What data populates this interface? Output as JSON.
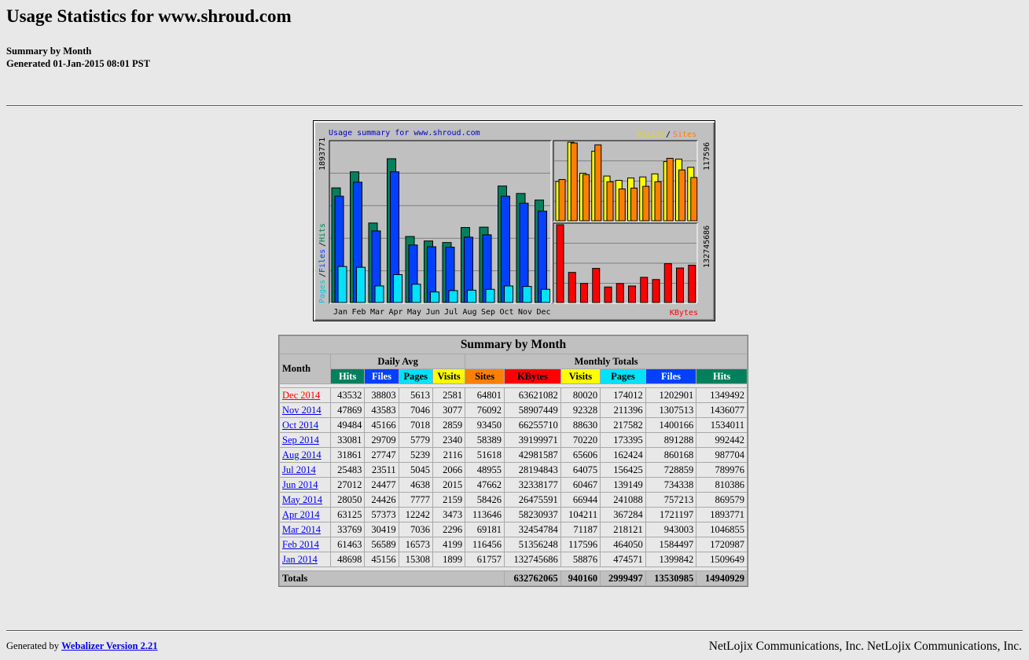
{
  "page": {
    "title": "Usage Statistics for www.shroud.com",
    "subtitle1": "Summary by Month",
    "subtitle2": "Generated 01-Jan-2015 08:01 PST"
  },
  "graph": {
    "title": "Usage summary for www.shroud.com",
    "legend_visits": "Visits",
    "legend_sites": "Sites",
    "legend_sep": "/",
    "left_axis_max": "1893771",
    "left_legend_pages": "Pages",
    "left_legend_files": "Files",
    "left_legend_hits": "Hits",
    "right_top_max": "117596",
    "right_bottom_max": "132745686",
    "kbytes_label": "KBytes",
    "colors": {
      "hits": "#00805c",
      "files": "#0040ff",
      "pages": "#00e0ff",
      "visits": "#ffff00",
      "sites": "#ff8000",
      "kbytes": "#ff0000"
    }
  },
  "chart_data": {
    "type": "bar",
    "categories": [
      "Jan",
      "Feb",
      "Mar",
      "Apr",
      "May",
      "Jun",
      "Jul",
      "Aug",
      "Sep",
      "Oct",
      "Nov",
      "Dec"
    ],
    "series": [
      {
        "name": "Hits",
        "values": [
          1509649,
          1720987,
          1046855,
          1893771,
          869579,
          810386,
          789976,
          987704,
          992442,
          1534011,
          1436077,
          1349492
        ]
      },
      {
        "name": "Files",
        "values": [
          1399842,
          1584497,
          943003,
          1721197,
          757213,
          734338,
          728859,
          860168,
          891288,
          1400166,
          1307513,
          1202901
        ]
      },
      {
        "name": "Pages",
        "values": [
          474571,
          464050,
          218121,
          367284,
          241088,
          139149,
          156425,
          162424,
          173395,
          217582,
          211396,
          174012
        ]
      },
      {
        "name": "Visits",
        "values": [
          58876,
          117596,
          71187,
          104211,
          66944,
          60467,
          64075,
          65606,
          70220,
          88630,
          92328,
          80020
        ]
      },
      {
        "name": "Sites",
        "values": [
          61757,
          116456,
          69181,
          113646,
          58426,
          47662,
          48955,
          51618,
          58389,
          93450,
          76092,
          64801
        ]
      },
      {
        "name": "KBytes",
        "values": [
          132745686,
          51356248,
          32454784,
          58230937,
          26475591,
          32338177,
          28194843,
          42981587,
          39199971,
          66255710,
          58907449,
          63621082
        ]
      }
    ]
  },
  "table": {
    "title": "Summary by Month",
    "col_month": "Month",
    "group_daily": "Daily Avg",
    "group_monthly": "Monthly Totals",
    "headers": {
      "d_hits": "Hits",
      "d_files": "Files",
      "d_pages": "Pages",
      "d_visits": "Visits",
      "m_sites": "Sites",
      "m_kbytes": "KBytes",
      "m_visits": "Visits",
      "m_pages": "Pages",
      "m_files": "Files",
      "m_hits": "Hits"
    },
    "rows": [
      {
        "month": "Dec 2014",
        "d": [
          "43532",
          "38803",
          "5613",
          "2581"
        ],
        "m": [
          "64801",
          "63621082",
          "80020",
          "174012",
          "1202901",
          "1349492"
        ]
      },
      {
        "month": "Nov 2014",
        "d": [
          "47869",
          "43583",
          "7046",
          "3077"
        ],
        "m": [
          "76092",
          "58907449",
          "92328",
          "211396",
          "1307513",
          "1436077"
        ]
      },
      {
        "month": "Oct 2014",
        "d": [
          "49484",
          "45166",
          "7018",
          "2859"
        ],
        "m": [
          "93450",
          "66255710",
          "88630",
          "217582",
          "1400166",
          "1534011"
        ]
      },
      {
        "month": "Sep 2014",
        "d": [
          "33081",
          "29709",
          "5779",
          "2340"
        ],
        "m": [
          "58389",
          "39199971",
          "70220",
          "173395",
          "891288",
          "992442"
        ]
      },
      {
        "month": "Aug 2014",
        "d": [
          "31861",
          "27747",
          "5239",
          "2116"
        ],
        "m": [
          "51618",
          "42981587",
          "65606",
          "162424",
          "860168",
          "987704"
        ]
      },
      {
        "month": "Jul 2014",
        "d": [
          "25483",
          "23511",
          "5045",
          "2066"
        ],
        "m": [
          "48955",
          "28194843",
          "64075",
          "156425",
          "728859",
          "789976"
        ]
      },
      {
        "month": "Jun 2014",
        "d": [
          "27012",
          "24477",
          "4638",
          "2015"
        ],
        "m": [
          "47662",
          "32338177",
          "60467",
          "139149",
          "734338",
          "810386"
        ]
      },
      {
        "month": "May 2014",
        "d": [
          "28050",
          "24426",
          "7777",
          "2159"
        ],
        "m": [
          "58426",
          "26475591",
          "66944",
          "241088",
          "757213",
          "869579"
        ]
      },
      {
        "month": "Apr 2014",
        "d": [
          "63125",
          "57373",
          "12242",
          "3473"
        ],
        "m": [
          "113646",
          "58230937",
          "104211",
          "367284",
          "1721197",
          "1893771"
        ]
      },
      {
        "month": "Mar 2014",
        "d": [
          "33769",
          "30419",
          "7036",
          "2296"
        ],
        "m": [
          "69181",
          "32454784",
          "71187",
          "218121",
          "943003",
          "1046855"
        ]
      },
      {
        "month": "Feb 2014",
        "d": [
          "61463",
          "56589",
          "16573",
          "4199"
        ],
        "m": [
          "116456",
          "51356248",
          "117596",
          "464050",
          "1584497",
          "1720987"
        ]
      },
      {
        "month": "Jan 2014",
        "d": [
          "48698",
          "45156",
          "15308",
          "1899"
        ],
        "m": [
          "61757",
          "132745686",
          "58876",
          "474571",
          "1399842",
          "1509649"
        ]
      }
    ],
    "totals_label": "Totals",
    "totals": [
      "632762065",
      "940160",
      "2999497",
      "13530985",
      "14940929"
    ]
  },
  "footer": {
    "generated_by": "Generated by",
    "link_text": "Webalizer Version 2.21",
    "company": "NetLojix Communications, Inc. NetLojix Communications, Inc."
  }
}
